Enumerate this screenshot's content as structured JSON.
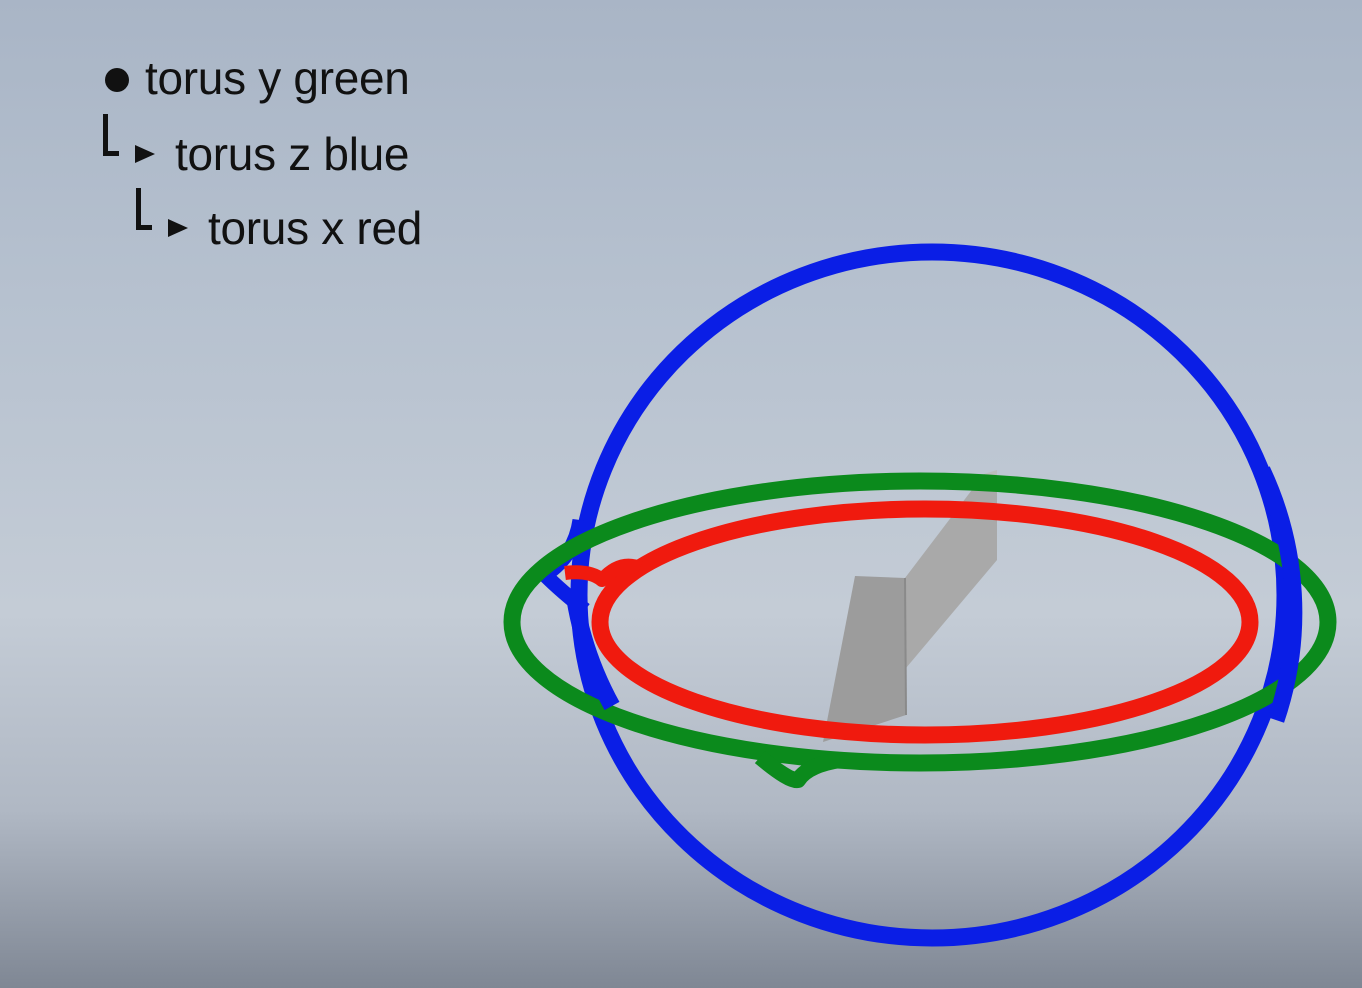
{
  "hierarchy": {
    "items": [
      {
        "label": "torus y green",
        "depth": 0,
        "marker": "bullet"
      },
      {
        "label": "torus z blue",
        "depth": 1,
        "marker": "child-arrow"
      },
      {
        "label": "torus x red",
        "depth": 2,
        "marker": "child-arrow"
      }
    ]
  },
  "rings": {
    "blue": {
      "name": "torus z",
      "color": "#0a1ee6"
    },
    "green": {
      "name": "torus y",
      "color": "#0b8a1c"
    },
    "red": {
      "name": "torus x",
      "color": "#f01a0e"
    }
  },
  "object": {
    "name": "gray wedge",
    "color": "#a9a9a9"
  }
}
